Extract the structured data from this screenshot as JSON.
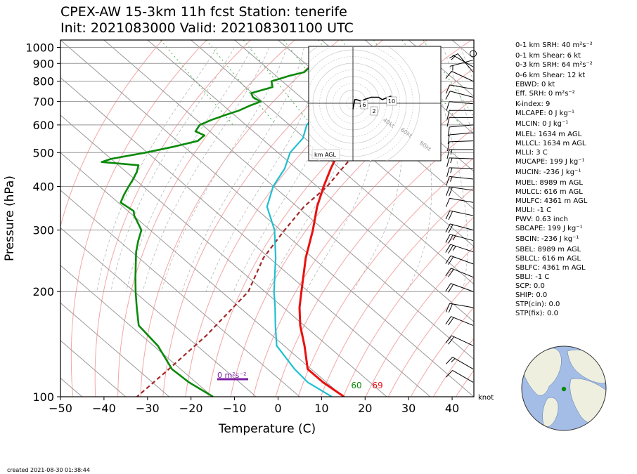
{
  "header": {
    "title_line1": "CPEX-AW 15-3km  11h fcst  Station: tenerife",
    "title_line2": "Init: 2021083000  Valid: 202108301100 UTC"
  },
  "footer": {
    "created": "created 2021-08-30 01:38:44"
  },
  "chart_data": {
    "type": "skew-t",
    "xlabel": "Temperature (C)",
    "ylabel": "Pressure (hPa)",
    "xlim": [
      -50,
      45
    ],
    "ylim": [
      1050,
      100
    ],
    "log_y": true,
    "skew_c_per_decade": 93,
    "x_ticks": [
      -50,
      -40,
      -30,
      -20,
      -10,
      0,
      10,
      20,
      30,
      40
    ],
    "y_ticks": [
      100,
      200,
      300,
      400,
      500,
      600,
      700,
      800,
      900,
      1000
    ],
    "grid": true,
    "colors": {
      "temperature": "#e8110f",
      "dewpoint": "#0a8a0a",
      "wetbulb": "#1fbfcf",
      "parcel": "#a52a2a",
      "dry_adiabat": "#f4a6a6",
      "moist_adiabat": "#b8b8b8",
      "mixing_ratio": "#4caf50",
      "isotherm": "#999999",
      "srh_bar": "#7b1fa2"
    },
    "series": [
      {
        "key": "temperature",
        "p": [
          1000,
          980,
          960,
          940,
          925,
          905,
          890,
          850,
          800,
          750,
          700,
          650,
          600,
          550,
          500,
          450,
          400,
          350,
          300,
          250,
          200,
          180,
          160,
          140,
          120,
          110,
          100
        ],
        "t": [
          21.5,
          19.6,
          19.8,
          22.0,
          23.6,
          22.0,
          21.1,
          18.1,
          14.1,
          9.4,
          4.5,
          -0.8,
          -5.8,
          -10.9,
          -16.1,
          -22.1,
          -28.5,
          -35.4,
          -42.6,
          -51.6,
          -61.6,
          -66.3,
          -70.9,
          -75.3,
          -80.8,
          -80.8,
          -79.8
        ]
      },
      {
        "key": "dewpoint",
        "p": [
          1000,
          970,
          950,
          930,
          910,
          890,
          870,
          850,
          830,
          800,
          770,
          740,
          720,
          700,
          680,
          660,
          640,
          620,
          600,
          575,
          560,
          540,
          520,
          500,
          480,
          470,
          460,
          440,
          420,
          400,
          380,
          360,
          340,
          330,
          320,
          300,
          280,
          260,
          240,
          220,
          200,
          180,
          160,
          140,
          120,
          110,
          100
        ],
        "t": [
          20.0,
          19.6,
          18.1,
          9.5,
          5.9,
          2.4,
          -0.7,
          -2.5,
          -6.8,
          -12.5,
          -13.8,
          -20.3,
          -21.0,
          -20.4,
          -24.2,
          -27.7,
          -32.2,
          -36.6,
          -40.6,
          -43.3,
          -42.3,
          -45.3,
          -52.3,
          -60.4,
          -69.9,
          -73.0,
          -65.4,
          -67.6,
          -70.3,
          -73.3,
          -76.4,
          -79.4,
          -78.7,
          -79.8,
          -80.5,
          -82.0,
          -85.5,
          -89.0,
          -92.3,
          -95.9,
          -99.7,
          -103.7,
          -108.0,
          -109.0,
          -112.0,
          -111.6,
          -109.9
        ]
      },
      {
        "key": "wetbulb",
        "p": [
          1000,
          970,
          950,
          930,
          910,
          890,
          870,
          850,
          820,
          800,
          770,
          740,
          700,
          650,
          600,
          550,
          500,
          450,
          400,
          350,
          300,
          250,
          200,
          180,
          160,
          140,
          120,
          110,
          100
        ],
        "t": [
          21.0,
          19.8,
          19.1,
          17.5,
          15.2,
          12.7,
          11.1,
          9.1,
          6.9,
          4.2,
          1.4,
          -1.5,
          -5.2,
          -10.4,
          -16.0,
          -20.4,
          -27.2,
          -32.7,
          -40.1,
          -46.9,
          -51.4,
          -58.5,
          -67.9,
          -71.9,
          -76.6,
          -81.7,
          -83.8,
          -84.3,
          -82.6
        ]
      },
      {
        "key": "parcel",
        "p": [
          980,
          950,
          920,
          900,
          850,
          800,
          750,
          700,
          650,
          600,
          550,
          500,
          450,
          400,
          350,
          300,
          250,
          200,
          150,
          120,
          100
        ],
        "t": [
          25.4,
          24.0,
          21.6,
          19.4,
          16.7,
          13.9,
          10.7,
          7.2,
          3.5,
          -0.8,
          -6.1,
          -12.1,
          -19.5,
          -27.7,
          -38.4,
          -49.1,
          -61.3,
          -73.8,
          -95.0,
          -112.7,
          -127.4
        ]
      }
    ],
    "annotations": {
      "surface_temperature_label": "69",
      "surface_dewpoint_label": "60",
      "srh_label": "0 m²s⁻²",
      "wind_unit_label": "knot"
    },
    "hodograph": {
      "height_label": "km AGL",
      "ring_labels": [
        "40kt",
        "60kt",
        "80kt"
      ],
      "height_markers": [
        "6",
        "2",
        "10"
      ],
      "u": [
        0,
        1,
        2,
        4,
        5,
        4,
        6,
        10,
        14,
        16,
        21
      ],
      "v": [
        -5,
        3,
        3,
        2,
        2,
        -3,
        3,
        5,
        5,
        3,
        6
      ]
    },
    "wind_barbs": {
      "p": [
        960,
        920,
        880,
        850,
        800,
        760,
        720,
        690,
        660,
        630,
        600,
        570,
        540,
        510,
        480,
        450,
        420,
        390,
        360,
        330,
        300,
        280,
        260,
        240,
        220,
        200,
        180,
        160,
        140,
        120,
        110
      ],
      "speed_kt": [
        3,
        5,
        7,
        9,
        8,
        8,
        9,
        10,
        10,
        10,
        10,
        10,
        12,
        13,
        15,
        16,
        17,
        18,
        12,
        20,
        22,
        23,
        24,
        22,
        21,
        20,
        18,
        22,
        20,
        15,
        12
      ],
      "dir_deg": [
        180,
        255,
        300,
        320,
        295,
        280,
        285,
        275,
        270,
        270,
        265,
        265,
        268,
        270,
        272,
        272,
        276,
        278,
        280,
        282,
        285,
        285,
        288,
        290,
        292,
        290,
        280,
        292,
        295,
        300,
        300
      ]
    },
    "indices": [
      "0-1 km SRH: 40 m²s⁻²",
      "0-1 km Shear: 6 kt",
      "0-3 km SRH: 64 m²s⁻²",
      "0-6 km Shear: 12 kt",
      "EBWD: 0 kt",
      "Eff. SRH: 0 m²s⁻²",
      "K-index: 9",
      "MLCAPE: 0 J kg⁻¹",
      "MLCIN: 0 J kg⁻¹",
      "MLEL: 1634 m AGL",
      "MLLCL: 1634 m AGL",
      "MLLI: 3 C",
      "MUCAPE: 199 J kg⁻¹",
      "MUCIN: -236 J kg⁻¹",
      "MUEL: 8989 m AGL",
      "MULCL: 616 m AGL",
      "MULFC: 4361 m AGL",
      "MULI: -1 C",
      "PWV: 0.63 inch",
      "SBCAPE: 199 J kg⁻¹",
      "SBCIN: -236 J kg⁻¹",
      "SBEL: 8989 m AGL",
      "SBLCL: 616 m AGL",
      "SBLFC: 4361 m AGL",
      "SBLI: -1 C",
      "SCP: 0.0",
      "SHIP: 0.0",
      "STP(cin): 0.0",
      "STP(fix): 0.0"
    ],
    "globe": {
      "station_lat": 28.3,
      "station_lon": -16.5,
      "center_lat": 20,
      "center_lon": -35
    }
  }
}
